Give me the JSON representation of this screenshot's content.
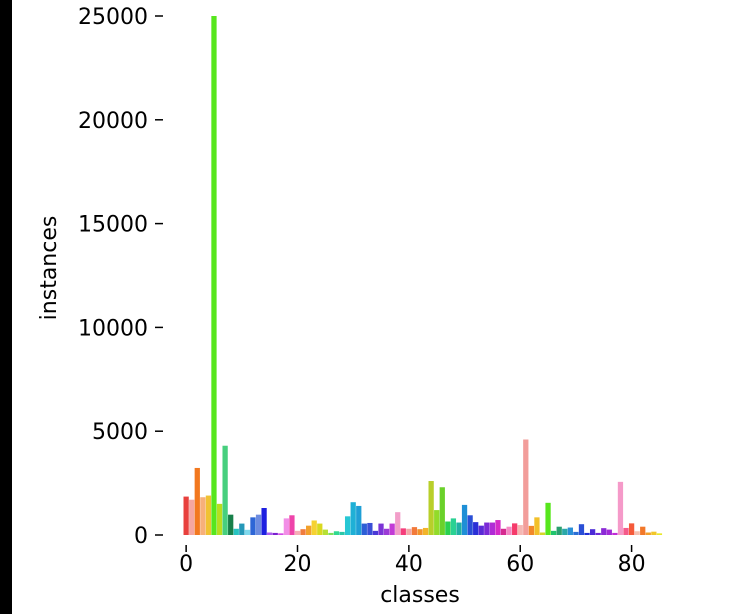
{
  "chart_data": {
    "type": "bar",
    "xlabel": "classes",
    "ylabel": "instances",
    "ylim": [
      0,
      25000
    ],
    "xlim": [
      -2,
      86
    ],
    "yticks": [
      0,
      5000,
      10000,
      15000,
      20000,
      25000
    ],
    "xticks": [
      0,
      20,
      40,
      60,
      80
    ],
    "grid": false,
    "x": [
      0,
      1,
      2,
      3,
      4,
      5,
      6,
      7,
      8,
      9,
      10,
      11,
      12,
      13,
      14,
      15,
      16,
      17,
      18,
      19,
      20,
      21,
      22,
      23,
      24,
      25,
      26,
      27,
      28,
      29,
      30,
      31,
      32,
      33,
      34,
      35,
      36,
      37,
      38,
      39,
      40,
      41,
      42,
      43,
      44,
      45,
      46,
      47,
      48,
      49,
      50,
      51,
      52,
      53,
      54,
      55,
      56,
      57,
      58,
      59,
      60,
      61,
      62,
      63,
      64,
      65,
      66,
      67,
      68,
      69,
      70,
      71,
      72,
      73,
      74,
      75,
      76,
      77,
      78,
      79,
      80,
      81,
      82,
      83,
      84,
      85
    ],
    "values": [
      1850,
      1700,
      3230,
      1820,
      1900,
      25000,
      1500,
      4300,
      980,
      300,
      550,
      250,
      850,
      980,
      1300,
      120,
      100,
      80,
      800,
      950,
      200,
      280,
      450,
      700,
      550,
      260,
      100,
      180,
      150,
      900,
      1580,
      1400,
      550,
      580,
      200,
      550,
      300,
      550,
      1100,
      320,
      300,
      380,
      280,
      340,
      2600,
      1200,
      2300,
      650,
      800,
      600,
      1450,
      950,
      620,
      450,
      600,
      600,
      720,
      300,
      400,
      560,
      480,
      4600,
      440,
      850,
      120,
      1550,
      200,
      400,
      300,
      360,
      150,
      520,
      100,
      280,
      100,
      330,
      260,
      100,
      2560,
      340,
      560,
      180,
      400,
      120,
      160,
      80
    ],
    "colors": [
      "#e8403d",
      "#f5a6a0",
      "#f2781f",
      "#f7b07a",
      "#f0c233",
      "#57e61d",
      "#b8de1e",
      "#47cf7e",
      "#18804a",
      "#27c4c1",
      "#2598b8",
      "#7fd9ed",
      "#2e66d6",
      "#6d8ce0",
      "#1d1fe0",
      "#ab5cf0",
      "#7a1fcf",
      "#d34de6",
      "#f28ee6",
      "#ee44aa",
      "#f5aeb6",
      "#f07c3e",
      "#f2a12c",
      "#f5d232",
      "#d9d91f",
      "#b6e035",
      "#7ee05b",
      "#30d990",
      "#2bc7a8",
      "#27c7d4",
      "#1fb0d6",
      "#1f9fd6",
      "#2d5ed6",
      "#3a4fd6",
      "#4a38d6",
      "#7b34d6",
      "#9b3bd6",
      "#c23bd6",
      "#f29ec9",
      "#f53e7b",
      "#f2a9a9",
      "#f27a3a",
      "#f2922a",
      "#f2b42a",
      "#b8cf2a",
      "#93db2a",
      "#6ad12a",
      "#2ad14f",
      "#2ad193",
      "#20b0a4",
      "#1f8fd6",
      "#2a4fd6",
      "#2a2fd6",
      "#5b2ad6",
      "#7b2ad6",
      "#b02ad6",
      "#d62ac8",
      "#d62a8f",
      "#f58ac4",
      "#f53a6a",
      "#f5b7b3",
      "#f29d9a",
      "#f2882a",
      "#f2c02a",
      "#d6d62a",
      "#57e61d",
      "#20c46e",
      "#2a9f6f",
      "#2aa8a8",
      "#2a8fd6",
      "#2a6fd6",
      "#2a4fd6",
      "#1f2fd6",
      "#4b2ad6",
      "#6b2ad6",
      "#8b2ad6",
      "#a12ad6",
      "#c12ad6",
      "#f59ac9",
      "#f55a8a",
      "#f55a3a",
      "#f5c0b0",
      "#f2782a",
      "#f2a02a",
      "#f2c62a",
      "#e8e82a"
    ]
  }
}
